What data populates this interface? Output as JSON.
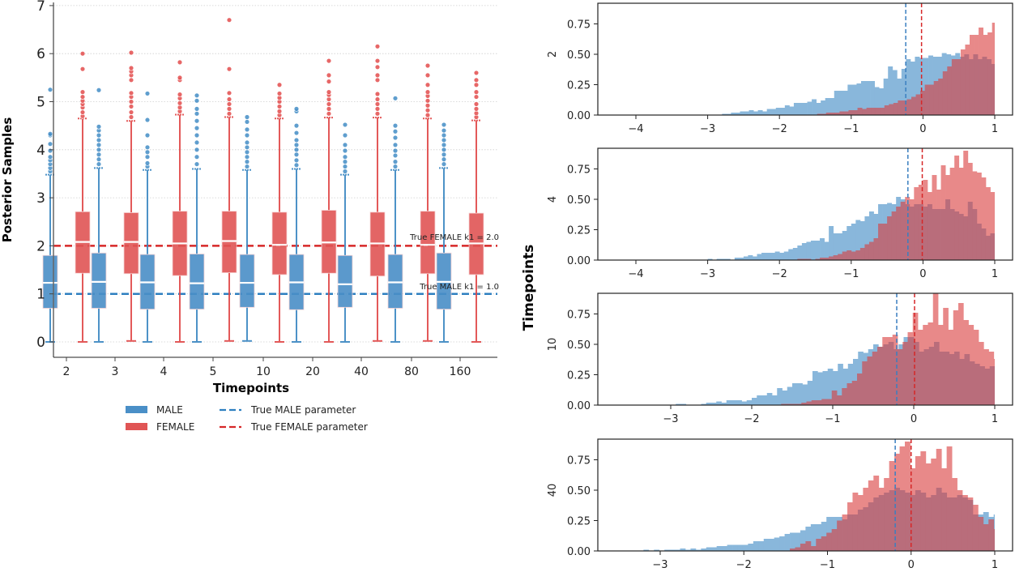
{
  "chart_data": [
    {
      "type": "boxplot",
      "ylabel": "Posterior Samples",
      "xlabel": "Timepoints",
      "ylim": [
        -0.3,
        7
      ],
      "yticks": [
        "0",
        "1",
        "2",
        "3",
        "4",
        "5",
        "6",
        "7"
      ],
      "categories": [
        "2",
        "3",
        "4",
        "5",
        "10",
        "20",
        "40",
        "80",
        "160"
      ],
      "grid": "y-dotted",
      "series": [
        {
          "name": "MALE",
          "color": "#3a87c1",
          "boxes": [
            {
              "low": 0.0,
              "q1": 0.7,
              "median": 1.23,
              "q3": 1.8,
              "high": 3.48,
              "outliers": [
                3.55,
                3.62,
                3.7,
                3.78,
                3.85,
                3.98,
                4.12,
                4.3,
                4.33,
                5.25
              ]
            },
            {
              "low": 0.0,
              "q1": 0.7,
              "median": 1.25,
              "q3": 1.85,
              "high": 3.62,
              "outliers": [
                3.7,
                3.8,
                3.9,
                4.0,
                4.1,
                4.2,
                4.3,
                4.4,
                4.48,
                5.24
              ]
            },
            {
              "low": 0.0,
              "q1": 0.68,
              "median": 1.24,
              "q3": 1.82,
              "high": 3.58,
              "outliers": [
                3.65,
                3.72,
                3.85,
                3.95,
                4.05,
                4.3,
                4.62,
                5.17
              ]
            },
            {
              "low": 0.0,
              "q1": 0.68,
              "median": 1.22,
              "q3": 1.83,
              "high": 3.6,
              "outliers": [
                3.7,
                3.85,
                4.0,
                4.15,
                4.3,
                4.45,
                4.6,
                4.75,
                4.85,
                5.02,
                5.13
              ]
            },
            {
              "low": 0.02,
              "q1": 0.72,
              "median": 1.23,
              "q3": 1.82,
              "high": 3.58,
              "outliers": [
                3.65,
                3.75,
                3.85,
                3.95,
                4.05,
                4.15,
                4.3,
                4.42,
                4.58,
                4.68
              ]
            },
            {
              "low": 0.0,
              "q1": 0.67,
              "median": 1.24,
              "q3": 1.82,
              "high": 3.6,
              "outliers": [
                3.68,
                3.78,
                3.9,
                4.0,
                4.1,
                4.2,
                4.35,
                4.5,
                4.8,
                4.85
              ]
            },
            {
              "low": 0.0,
              "q1": 0.72,
              "median": 1.2,
              "q3": 1.8,
              "high": 3.48,
              "outliers": [
                3.55,
                3.65,
                3.75,
                3.85,
                3.98,
                4.1,
                4.3,
                4.52
              ]
            },
            {
              "low": 0.0,
              "q1": 0.7,
              "median": 1.24,
              "q3": 1.82,
              "high": 3.58,
              "outliers": [
                3.65,
                3.75,
                3.88,
                3.98,
                4.1,
                4.25,
                4.38,
                4.5,
                5.07
              ]
            },
            {
              "low": 0.0,
              "q1": 0.68,
              "median": 1.25,
              "q3": 1.85,
              "high": 3.62,
              "outliers": [
                3.7,
                3.8,
                3.9,
                4.0,
                4.1,
                4.2,
                4.3,
                4.4,
                4.52
              ]
            }
          ]
        },
        {
          "name": "FEMALE",
          "color": "#e05050",
          "boxes": [
            {
              "low": 0.0,
              "q1": 1.43,
              "median": 2.08,
              "q3": 2.71,
              "high": 4.65,
              "outliers": [
                4.7,
                4.78,
                4.88,
                4.95,
                5.02,
                5.1,
                5.2,
                5.68,
                6.0
              ]
            },
            {
              "low": 0.02,
              "q1": 1.42,
              "median": 2.08,
              "q3": 2.69,
              "high": 4.6,
              "outliers": [
                4.68,
                4.78,
                4.9,
                5.0,
                5.1,
                5.18,
                5.45,
                5.55,
                5.63,
                5.7,
                6.02
              ]
            },
            {
              "low": 0.0,
              "q1": 1.38,
              "median": 2.05,
              "q3": 2.72,
              "high": 4.73,
              "outliers": [
                4.8,
                4.88,
                4.97,
                5.07,
                5.15,
                5.45,
                5.5,
                5.82
              ]
            },
            {
              "low": 0.02,
              "q1": 1.44,
              "median": 2.1,
              "q3": 2.72,
              "high": 4.68,
              "outliers": [
                4.75,
                4.85,
                4.95,
                5.05,
                5.18,
                5.68,
                6.7
              ]
            },
            {
              "low": 0.0,
              "q1": 1.4,
              "median": 2.02,
              "q3": 2.7,
              "high": 4.65,
              "outliers": [
                4.72,
                4.8,
                4.9,
                5.0,
                5.08,
                5.17,
                5.35
              ]
            },
            {
              "low": 0.0,
              "q1": 1.43,
              "median": 2.07,
              "q3": 2.74,
              "high": 4.67,
              "outliers": [
                4.75,
                4.85,
                4.95,
                5.05,
                5.14,
                5.2,
                5.42,
                5.55,
                5.85
              ]
            },
            {
              "low": 0.02,
              "q1": 1.37,
              "median": 2.05,
              "q3": 2.7,
              "high": 4.67,
              "outliers": [
                4.75,
                4.85,
                4.95,
                5.05,
                5.16,
                5.45,
                5.55,
                5.72,
                5.85,
                6.15
              ]
            },
            {
              "low": 0.02,
              "q1": 1.42,
              "median": 2.02,
              "q3": 2.72,
              "high": 4.65,
              "outliers": [
                4.72,
                4.82,
                4.92,
                5.02,
                5.12,
                5.2,
                5.35,
                5.55,
                5.75
              ]
            },
            {
              "low": 0.0,
              "q1": 1.4,
              "median": 2.05,
              "q3": 2.68,
              "high": 4.61,
              "outliers": [
                4.68,
                4.76,
                4.85,
                4.95,
                5.1,
                5.2,
                5.35,
                5.45,
                5.6
              ]
            }
          ]
        }
      ],
      "reference_lines": [
        {
          "name": "True MALE parameter",
          "value": 1.0,
          "color": "#2e7fc0",
          "annotation": "True MALE k1 = 1.0"
        },
        {
          "name": "True FEMALE parameter",
          "value": 2.0,
          "color": "#d62728",
          "annotation": "True FEMALE k1 = 2.0"
        }
      ],
      "legend": {
        "placement": "bottom",
        "entries": [
          {
            "label": "MALE",
            "kind": "patch",
            "color": "#4a8fc7"
          },
          {
            "label": "FEMALE",
            "kind": "patch",
            "color": "#e05555"
          },
          {
            "label": "True MALE parameter",
            "kind": "dashed",
            "color": "#2e7fc0"
          },
          {
            "label": "True FEMALE parameter",
            "kind": "dashed",
            "color": "#d62728"
          }
        ]
      }
    },
    {
      "type": "histogram",
      "shared_ylabel": "Timepoints",
      "yticks": [
        "0.00",
        "0.25",
        "0.50",
        "0.75"
      ],
      "ylim": [
        0,
        0.92
      ],
      "male_color": "#5a9bcf",
      "female_color": "#e05a5a",
      "bin_width": 0.0625,
      "panels": [
        {
          "label": "2",
          "xlim": [
            -4.5,
            1.2
          ],
          "xticks": [
            "−4",
            "−3",
            "−2",
            "−1",
            "0",
            "1"
          ],
          "male_mean_line": -0.24,
          "female_mean_line": -0.02,
          "male_start": -2.8,
          "male": [
            0.01,
            0.01,
            0.02,
            0.02,
            0.03,
            0.03,
            0.04,
            0.03,
            0.04,
            0.03,
            0.05,
            0.05,
            0.06,
            0.06,
            0.08,
            0.07,
            0.1,
            0.1,
            0.1,
            0.11,
            0.13,
            0.1,
            0.12,
            0.14,
            0.14,
            0.2,
            0.2,
            0.2,
            0.25,
            0.25,
            0.26,
            0.28,
            0.28,
            0.28,
            0.23,
            0.22,
            0.3,
            0.4,
            0.37,
            0.3,
            0.38,
            0.46,
            0.44,
            0.48,
            0.47,
            0.47,
            0.49,
            0.48,
            0.48,
            0.51,
            0.5,
            0.49,
            0.51,
            0.48,
            0.5,
            0.46,
            0.5,
            0.46,
            0.48,
            0.46,
            0.42,
            0.44,
            0.4,
            0.36,
            0.38,
            0.34,
            0.48,
            0.36,
            0.34,
            0.26,
            0.32,
            0.22,
            0.4
          ],
          "female_start": -1.6,
          "female": [
            0.0,
            0.0,
            0.01,
            0.01,
            0.02,
            0.02,
            0.02,
            0.03,
            0.03,
            0.04,
            0.04,
            0.06,
            0.05,
            0.06,
            0.06,
            0.06,
            0.06,
            0.08,
            0.09,
            0.1,
            0.12,
            0.12,
            0.13,
            0.15,
            0.17,
            0.2,
            0.25,
            0.25,
            0.28,
            0.3,
            0.36,
            0.4,
            0.46,
            0.46,
            0.54,
            0.58,
            0.66,
            0.66,
            0.72,
            0.66,
            0.68,
            0.76,
            0.76,
            0.88,
            0.86,
            0.76,
            0.72,
            0.8,
            0.74,
            0.76,
            0.84,
            0.68,
            0.68,
            0.62,
            0.48,
            0.44,
            0.4,
            0.36,
            0.38,
            0.36,
            0.32,
            0.3,
            0.3,
            0.28,
            0.24,
            0.18,
            0.14
          ],
          "male_overlay_note": "overlap region shown as dark mauve"
        },
        {
          "label": "4",
          "xlim": [
            -4.5,
            1.2
          ],
          "xticks": [
            "−4",
            "−3",
            "−2",
            "−1",
            "0",
            "1"
          ],
          "male_mean_line": -0.21,
          "female_mean_line": -0.01,
          "male_start": -3.0,
          "male": [
            0.01,
            0.0,
            0.01,
            0.01,
            0.01,
            0.0,
            0.02,
            0.02,
            0.03,
            0.04,
            0.03,
            0.05,
            0.06,
            0.06,
            0.06,
            0.07,
            0.06,
            0.07,
            0.09,
            0.1,
            0.12,
            0.14,
            0.15,
            0.16,
            0.16,
            0.18,
            0.15,
            0.28,
            0.22,
            0.22,
            0.24,
            0.28,
            0.3,
            0.33,
            0.32,
            0.36,
            0.4,
            0.38,
            0.46,
            0.46,
            0.47,
            0.46,
            0.52,
            0.5,
            0.46,
            0.44,
            0.46,
            0.46,
            0.44,
            0.46,
            0.42,
            0.42,
            0.42,
            0.5,
            0.42,
            0.4,
            0.38,
            0.36,
            0.48,
            0.42,
            0.3,
            0.26,
            0.2,
            0.22,
            0.28,
            0.28
          ],
          "female_start": -1.75,
          "female": [
            0.01,
            0.01,
            0.01,
            0.0,
            0.01,
            0.02,
            0.02,
            0.03,
            0.04,
            0.05,
            0.07,
            0.08,
            0.07,
            0.08,
            0.1,
            0.13,
            0.15,
            0.18,
            0.3,
            0.3,
            0.36,
            0.4,
            0.44,
            0.48,
            0.52,
            0.5,
            0.6,
            0.62,
            0.66,
            0.56,
            0.7,
            0.58,
            0.78,
            0.7,
            0.76,
            0.86,
            0.76,
            0.9,
            0.8,
            0.73,
            0.72,
            0.68,
            0.6,
            0.56,
            0.58,
            0.48,
            0.46,
            0.44,
            0.3,
            0.28,
            0.38,
            0.26,
            0.24,
            0.16
          ]
        },
        {
          "label": "10",
          "xlim": [
            -3.9,
            1.2
          ],
          "xticks": [
            "−3",
            "−2",
            "−1",
            "0",
            "1"
          ],
          "male_mean_line": -0.21,
          "female_mean_line": 0.01,
          "male_start": -3.0,
          "male": [
            0.0,
            0.01,
            0.01,
            0.0,
            0.0,
            0.0,
            0.01,
            0.02,
            0.02,
            0.03,
            0.02,
            0.04,
            0.04,
            0.04,
            0.03,
            0.04,
            0.06,
            0.08,
            0.08,
            0.1,
            0.08,
            0.14,
            0.12,
            0.15,
            0.18,
            0.18,
            0.17,
            0.2,
            0.28,
            0.27,
            0.28,
            0.3,
            0.28,
            0.34,
            0.3,
            0.34,
            0.38,
            0.44,
            0.43,
            0.46,
            0.5,
            0.48,
            0.5,
            0.52,
            0.46,
            0.5,
            0.56,
            0.56,
            0.52,
            0.44,
            0.46,
            0.48,
            0.52,
            0.44,
            0.44,
            0.42,
            0.44,
            0.38,
            0.42,
            0.36,
            0.34,
            0.32,
            0.3,
            0.32,
            0.34
          ],
          "female_start": -1.7,
          "female": [
            0.0,
            0.01,
            0.01,
            0.01,
            0.01,
            0.02,
            0.03,
            0.04,
            0.04,
            0.05,
            0.05,
            0.12,
            0.08,
            0.14,
            0.18,
            0.2,
            0.26,
            0.36,
            0.4,
            0.44,
            0.48,
            0.56,
            0.56,
            0.58,
            0.46,
            0.52,
            0.6,
            0.76,
            0.62,
            0.66,
            0.68,
            0.92,
            0.66,
            0.8,
            0.62,
            0.78,
            0.84,
            0.7,
            0.66,
            0.62,
            0.52,
            0.46,
            0.44,
            0.38,
            0.34,
            0.3,
            0.2,
            0.16,
            0.1
          ]
        },
        {
          "label": "40",
          "xlim": [
            -3.75,
            1.2
          ],
          "xticks": [
            "−3",
            "−2",
            "−1",
            "0",
            "1"
          ],
          "male_mean_line": -0.19,
          "female_mean_line": 0.0,
          "male_start": -3.2,
          "male": [
            0.01,
            0.0,
            0.01,
            0.0,
            0.01,
            0.01,
            0.01,
            0.02,
            0.01,
            0.02,
            0.01,
            0.02,
            0.03,
            0.03,
            0.04,
            0.04,
            0.05,
            0.05,
            0.05,
            0.05,
            0.06,
            0.08,
            0.08,
            0.1,
            0.1,
            0.11,
            0.12,
            0.14,
            0.15,
            0.15,
            0.17,
            0.2,
            0.22,
            0.22,
            0.24,
            0.28,
            0.28,
            0.28,
            0.26,
            0.3,
            0.3,
            0.34,
            0.36,
            0.4,
            0.44,
            0.46,
            0.48,
            0.5,
            0.52,
            0.5,
            0.48,
            0.46,
            0.5,
            0.48,
            0.44,
            0.46,
            0.52,
            0.48,
            0.44,
            0.44,
            0.46,
            0.44,
            0.42,
            0.3,
            0.3,
            0.32,
            0.28,
            0.3,
            0.32
          ],
          "female_start": -1.45,
          "female": [
            0.02,
            0.03,
            0.06,
            0.08,
            0.04,
            0.1,
            0.12,
            0.15,
            0.18,
            0.25,
            0.3,
            0.4,
            0.48,
            0.46,
            0.52,
            0.58,
            0.62,
            0.52,
            0.6,
            0.74,
            0.8,
            0.86,
            0.9,
            0.68,
            0.78,
            0.82,
            0.72,
            0.76,
            0.84,
            0.68,
            0.86,
            0.6,
            0.5,
            0.46,
            0.44,
            0.38,
            0.28,
            0.22,
            0.26,
            0.18,
            0.1
          ]
        }
      ]
    }
  ]
}
